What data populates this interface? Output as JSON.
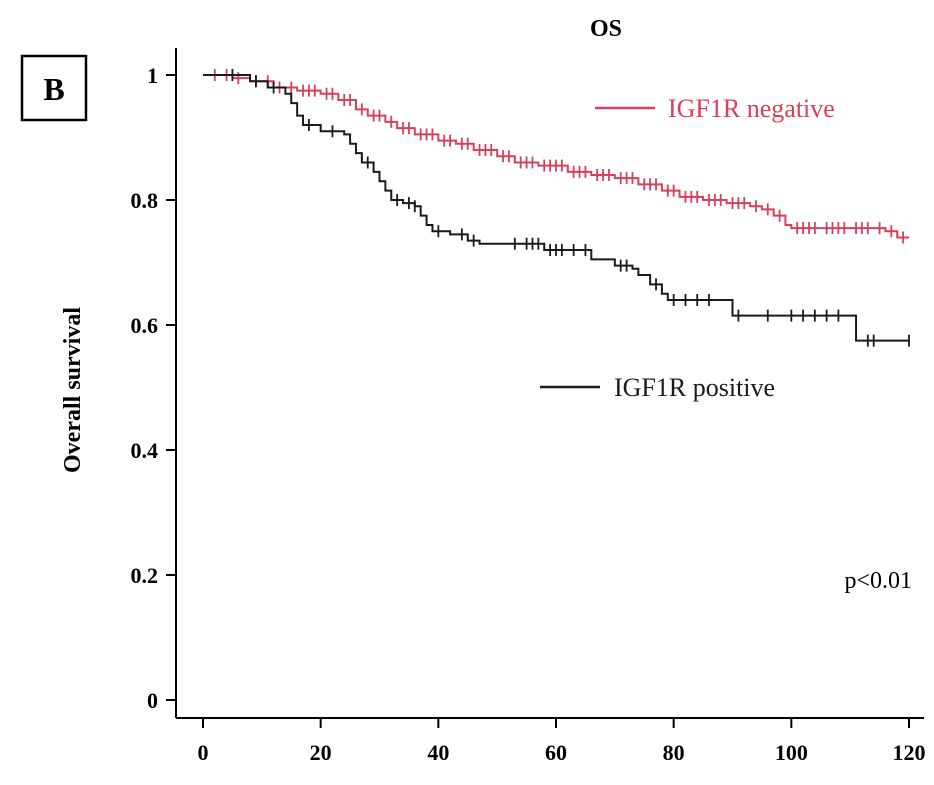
{
  "chart_data": {
    "type": "line",
    "title": "OS",
    "panel_label": "B",
    "xlabel": "",
    "ylabel": "Overall survival",
    "xlim": [
      0,
      120
    ],
    "ylim": [
      0,
      1
    ],
    "xticks": [
      0,
      20,
      40,
      60,
      80,
      100,
      120
    ],
    "yticks": [
      0,
      0.2,
      0.4,
      0.6,
      0.8,
      1
    ],
    "ytick_labels": [
      "0",
      "0.2",
      "0.4",
      "0.6",
      "0.8",
      "1"
    ],
    "grid": false,
    "annotation": "p<0.01",
    "series": [
      {
        "name": "IGF1R negative",
        "color": "#d8405a",
        "step": true,
        "points": [
          [
            0,
            1.0
          ],
          [
            5,
            0.995
          ],
          [
            8,
            0.99
          ],
          [
            12,
            0.98
          ],
          [
            16,
            0.975
          ],
          [
            20,
            0.97
          ],
          [
            23,
            0.96
          ],
          [
            26,
            0.945
          ],
          [
            28,
            0.935
          ],
          [
            31,
            0.925
          ],
          [
            33,
            0.915
          ],
          [
            36,
            0.905
          ],
          [
            40,
            0.895
          ],
          [
            43,
            0.89
          ],
          [
            46,
            0.88
          ],
          [
            50,
            0.87
          ],
          [
            53,
            0.86
          ],
          [
            57,
            0.855
          ],
          [
            62,
            0.845
          ],
          [
            66,
            0.84
          ],
          [
            70,
            0.835
          ],
          [
            74,
            0.825
          ],
          [
            78,
            0.815
          ],
          [
            81,
            0.805
          ],
          [
            85,
            0.8
          ],
          [
            89,
            0.795
          ],
          [
            93,
            0.79
          ],
          [
            95,
            0.785
          ],
          [
            97,
            0.775
          ],
          [
            99,
            0.76
          ],
          [
            100,
            0.755
          ],
          [
            105,
            0.755
          ],
          [
            110,
            0.755
          ],
          [
            116,
            0.75
          ],
          [
            118,
            0.74
          ],
          [
            120,
            0.74
          ]
        ],
        "censor_x": [
          2,
          4,
          6,
          9,
          11,
          13,
          15,
          17,
          18,
          19,
          21,
          22,
          24,
          25,
          27,
          29,
          30,
          32,
          34,
          35,
          37,
          38,
          39,
          41,
          42,
          44,
          45,
          47,
          48,
          49,
          51,
          52,
          54,
          55,
          56,
          58,
          59,
          60,
          61,
          63,
          64,
          65,
          67,
          68,
          69,
          71,
          72,
          73,
          75,
          76,
          77,
          79,
          80,
          82,
          83,
          84,
          86,
          87,
          88,
          90,
          91,
          92,
          94,
          96,
          98,
          101,
          102,
          103,
          104,
          106,
          107,
          108,
          109,
          111,
          112,
          113,
          115,
          117,
          119
        ]
      },
      {
        "name": "IGF1R positive",
        "color": "#1a1a1a",
        "step": true,
        "points": [
          [
            0,
            1.0
          ],
          [
            8,
            0.99
          ],
          [
            11,
            0.98
          ],
          [
            14,
            0.97
          ],
          [
            15,
            0.955
          ],
          [
            16,
            0.935
          ],
          [
            17,
            0.92
          ],
          [
            20,
            0.91
          ],
          [
            24,
            0.905
          ],
          [
            25,
            0.89
          ],
          [
            26,
            0.875
          ],
          [
            27,
            0.86
          ],
          [
            29,
            0.845
          ],
          [
            30,
            0.83
          ],
          [
            31,
            0.815
          ],
          [
            32,
            0.8
          ],
          [
            34,
            0.795
          ],
          [
            36,
            0.79
          ],
          [
            37,
            0.775
          ],
          [
            38,
            0.76
          ],
          [
            39,
            0.75
          ],
          [
            42,
            0.745
          ],
          [
            45,
            0.735
          ],
          [
            47,
            0.73
          ],
          [
            55,
            0.73
          ],
          [
            58,
            0.72
          ],
          [
            62,
            0.72
          ],
          [
            66,
            0.705
          ],
          [
            70,
            0.695
          ],
          [
            73,
            0.69
          ],
          [
            74,
            0.68
          ],
          [
            76,
            0.665
          ],
          [
            78,
            0.65
          ],
          [
            79,
            0.64
          ],
          [
            85,
            0.64
          ],
          [
            90,
            0.615
          ],
          [
            110,
            0.615
          ],
          [
            111,
            0.575
          ],
          [
            120,
            0.575
          ]
        ],
        "censor_x": [
          5,
          9,
          12,
          18,
          22,
          28,
          33,
          35,
          36,
          40,
          44,
          46,
          53,
          55,
          56,
          57,
          59,
          60,
          61,
          63,
          65,
          71,
          72,
          77,
          80,
          82,
          84,
          86,
          91,
          96,
          100,
          102,
          104,
          106,
          108,
          113,
          114,
          120
        ]
      }
    ],
    "legend": [
      {
        "name": "IGF1R negative",
        "color": "#d8405a",
        "placement": "upper-right"
      },
      {
        "name": "IGF1R positive",
        "color": "#1a1a1a",
        "placement": "middle-right"
      }
    ]
  }
}
